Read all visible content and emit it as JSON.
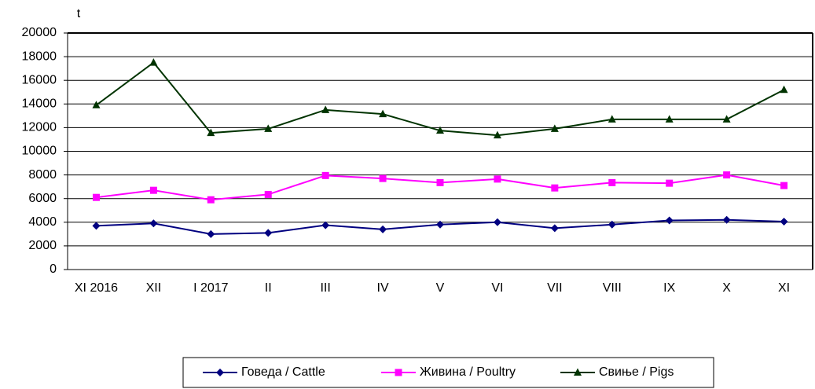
{
  "chart_data": {
    "type": "line",
    "y_label": "t",
    "categories": [
      "XI 2016",
      "XII",
      "I  2017",
      "II",
      "III",
      "IV",
      "V",
      "VI",
      "VII",
      "VIII",
      "IX",
      "X",
      "XI"
    ],
    "series": [
      {
        "name": "Говеда / Cattle",
        "color": "#000080",
        "marker": "diamond",
        "values": [
          3700,
          3900,
          3000,
          3100,
          3750,
          3400,
          3800,
          4000,
          3500,
          3800,
          4150,
          4200,
          4050
        ]
      },
      {
        "name": "Живина / Poultry",
        "color": "#ff00ff",
        "marker": "square",
        "values": [
          6100,
          6700,
          5900,
          6350,
          7950,
          7700,
          7350,
          7650,
          6900,
          7350,
          7300,
          8000,
          7100
        ]
      },
      {
        "name": "Свиње / Pigs",
        "color": "#003300",
        "marker": "triangle",
        "values": [
          13900,
          17500,
          11550,
          11900,
          13500,
          13150,
          11750,
          11350,
          11900,
          12700,
          12700,
          12700,
          15200
        ]
      }
    ],
    "ylim": [
      0,
      20000
    ],
    "yticks": [
      0,
      2000,
      4000,
      6000,
      8000,
      10000,
      12000,
      14000,
      16000,
      18000,
      20000
    ],
    "grid": true,
    "legend": "bottom"
  }
}
